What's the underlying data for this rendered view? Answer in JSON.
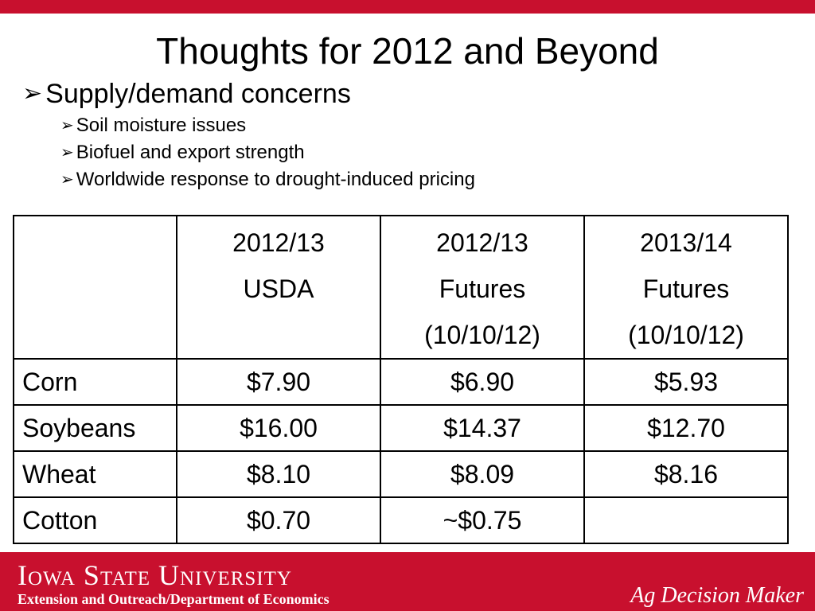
{
  "title": "Thoughts for 2012 and Beyond",
  "bullets": {
    "main": "Supply/demand concerns",
    "sub": [
      "Soil moisture issues",
      "Biofuel and export strength",
      "Worldwide response to drought-induced pricing"
    ],
    "arrow_glyph": "➢"
  },
  "table": {
    "headers": [
      {
        "lines": [
          "",
          "",
          ""
        ]
      },
      {
        "lines": [
          "2012/13",
          "USDA",
          ""
        ]
      },
      {
        "lines": [
          "2012/13",
          "Futures",
          "(10/10/12)"
        ]
      },
      {
        "lines": [
          "2013/14",
          "Futures",
          "(10/10/12)"
        ]
      }
    ],
    "rows": [
      {
        "label": "Corn",
        "values": [
          "$7.90",
          "$6.90",
          "$5.93"
        ]
      },
      {
        "label": "Soybeans",
        "values": [
          "$16.00",
          "$14.37",
          "$12.70"
        ]
      },
      {
        "label": "Wheat",
        "values": [
          "$8.10",
          "$8.09",
          "$8.16"
        ]
      },
      {
        "label": "Cotton",
        "values": [
          "$0.70",
          "~$0.75",
          ""
        ]
      }
    ]
  },
  "footer": {
    "university": "Iowa State University",
    "department": "Extension and Outreach/Department of Economics",
    "brand": "Ag Decision Maker"
  },
  "colors": {
    "accent": "#c8102e"
  }
}
